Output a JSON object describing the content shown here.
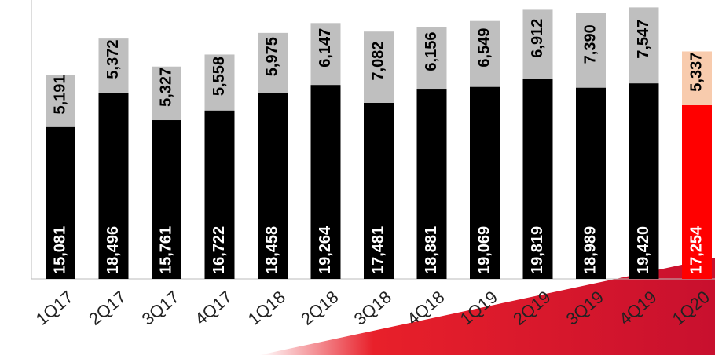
{
  "chart_data": {
    "type": "stacked_bar",
    "categories": [
      "1Q17",
      "2Q17",
      "3Q17",
      "4Q17",
      "1Q18",
      "2Q18",
      "3Q18",
      "4Q18",
      "1Q19",
      "2Q19",
      "3Q19",
      "4Q19",
      "1Q20"
    ],
    "series": [
      {
        "colors": [
          "#000000",
          "#000000",
          "#000000",
          "#000000",
          "#000000",
          "#000000",
          "#000000",
          "#000000",
          "#000000",
          "#000000",
          "#000000",
          "#000000",
          "#ff0000"
        ],
        "label_color": "#ffffff",
        "values": [
          15081,
          18496,
          15761,
          16722,
          18458,
          19264,
          17481,
          18881,
          19069,
          19819,
          18989,
          19420,
          17254
        ],
        "value_labels": [
          "15,081",
          "18,496",
          "15,761",
          "16,722",
          "18,458",
          "19,264",
          "17,481",
          "18,881",
          "19,069",
          "19,819",
          "18,989",
          "19,420",
          "17,254"
        ]
      },
      {
        "colors": [
          "#bfbfbf",
          "#bfbfbf",
          "#bfbfbf",
          "#bfbfbf",
          "#bfbfbf",
          "#bfbfbf",
          "#bfbfbf",
          "#bfbfbf",
          "#bfbfbf",
          "#bfbfbf",
          "#bfbfbf",
          "#bfbfbf",
          "#f8cbad"
        ],
        "label_color": "#000000",
        "values": [
          5191,
          5372,
          5327,
          5558,
          5975,
          6147,
          7082,
          6156,
          6549,
          6912,
          7390,
          7547,
          5337
        ],
        "value_labels": [
          "5,191",
          "5,372",
          "5,327",
          "5,558",
          "5,975",
          "6,147",
          "7,082",
          "6,156",
          "6,549",
          "6,912",
          "7,390",
          "7,547",
          "5,337"
        ]
      }
    ],
    "ylim": [
      0,
      27700
    ]
  }
}
